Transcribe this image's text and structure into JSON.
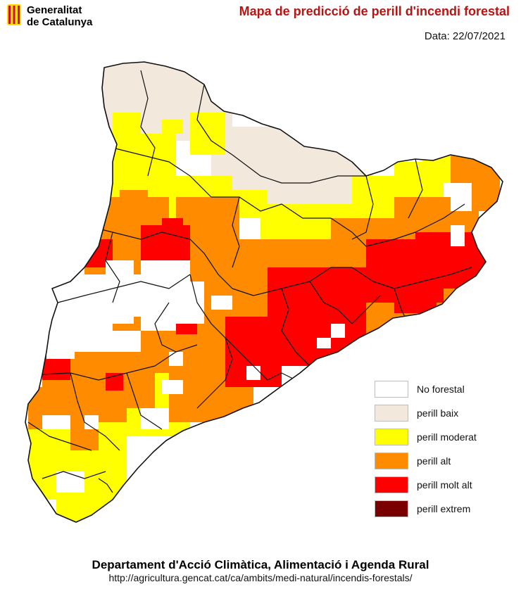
{
  "header": {
    "logo_line1": "Generalitat",
    "logo_line2": "de Catalunya",
    "title": "Mapa de predicció de perill d'incendi forestal",
    "date_label": "Data:",
    "date_value": "22/07/2021"
  },
  "legend": {
    "items": [
      {
        "label": "No forestal",
        "color": "#ffffff"
      },
      {
        "label": "perill baix",
        "color": "#f2e8dc"
      },
      {
        "label": "perill moderat",
        "color": "#ffff00"
      },
      {
        "label": "perill alt",
        "color": "#ff8c00"
      },
      {
        "label": "perill molt alt",
        "color": "#ff0000"
      },
      {
        "label": "perill extrem",
        "color": "#7a0000"
      }
    ]
  },
  "footer": {
    "department": "Departament d'Acció Climàtica, Alimentació i Agenda Rural",
    "url": "http://agricultura.gencat.cat/ca/ambits/medi-natural/incendis-forestals/"
  },
  "colors": {
    "title": "#b81414",
    "boundary": "#111111",
    "logo_stripe": "#c8102e",
    "logo_field": "#ffdd00"
  }
}
